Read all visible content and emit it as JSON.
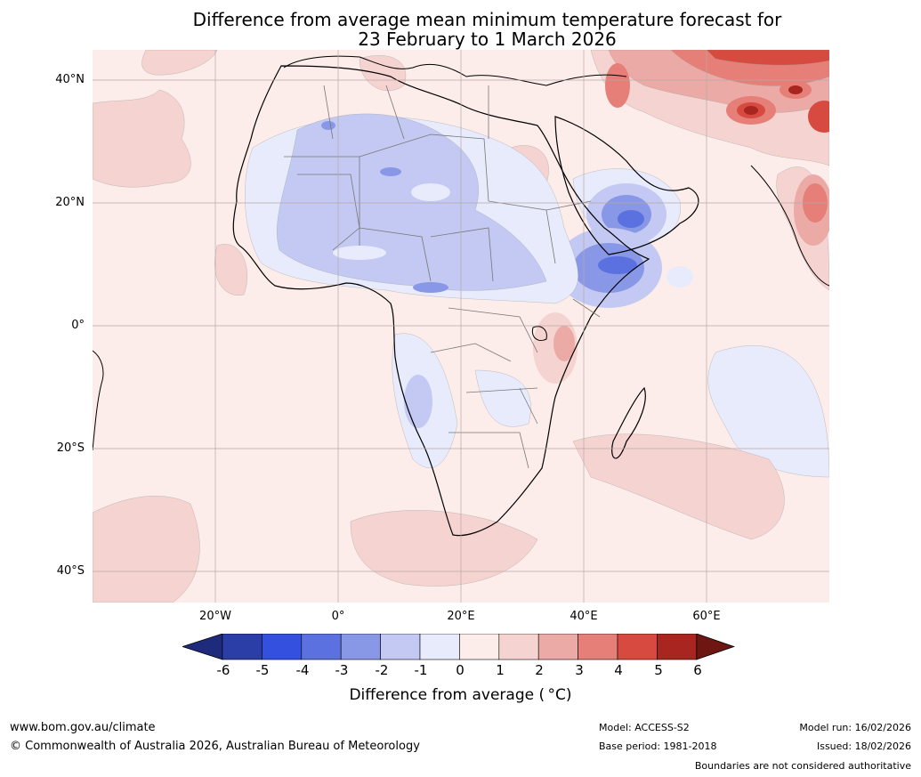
{
  "title": {
    "line1": "Difference from average mean minimum temperature forecast for",
    "line2": "23 February to 1 March 2026"
  },
  "map": {
    "lat_labels": [
      "40°N",
      "20°N",
      "0°",
      "20°S",
      "40°S"
    ],
    "lon_labels": [
      "20°W",
      "0°",
      "20°E",
      "40°E",
      "60°E"
    ],
    "extent": {
      "lon_min": -40,
      "lon_max": 80,
      "lat_min": -45,
      "lat_max": 45
    },
    "grid_lats": [
      40,
      20,
      0,
      -20,
      -40
    ],
    "grid_lons": [
      -20,
      0,
      20,
      40,
      60
    ]
  },
  "colorbar": {
    "ticks": [
      "-6",
      "-5",
      "-4",
      "-3",
      "-2",
      "-1",
      "0",
      "1",
      "2",
      "3",
      "4",
      "5",
      "6"
    ],
    "colors": [
      "#1e2b7c",
      "#2b3ea8",
      "#3350de",
      "#5b71e0",
      "#8898e6",
      "#c3c9f2",
      "#e8ebfb",
      "#fcecea",
      "#f5d3d0",
      "#ecaaa6",
      "#e57f78",
      "#d64a3f",
      "#a8261f",
      "#6e1612"
    ],
    "label": "Difference from average ( °C)"
  },
  "footer": {
    "website": "www.bom.gov.au/climate",
    "copyright": "© Commonwealth of Australia 2026, Australian Bureau of Meteorology",
    "model": "Model: ACCESS-S2",
    "base_period": "Base period: 1981-2018",
    "model_run": "Model run: 16/02/2026",
    "issued": "Issued: 18/02/2026",
    "disclaimer": "Boundaries are not considered authoritative"
  }
}
